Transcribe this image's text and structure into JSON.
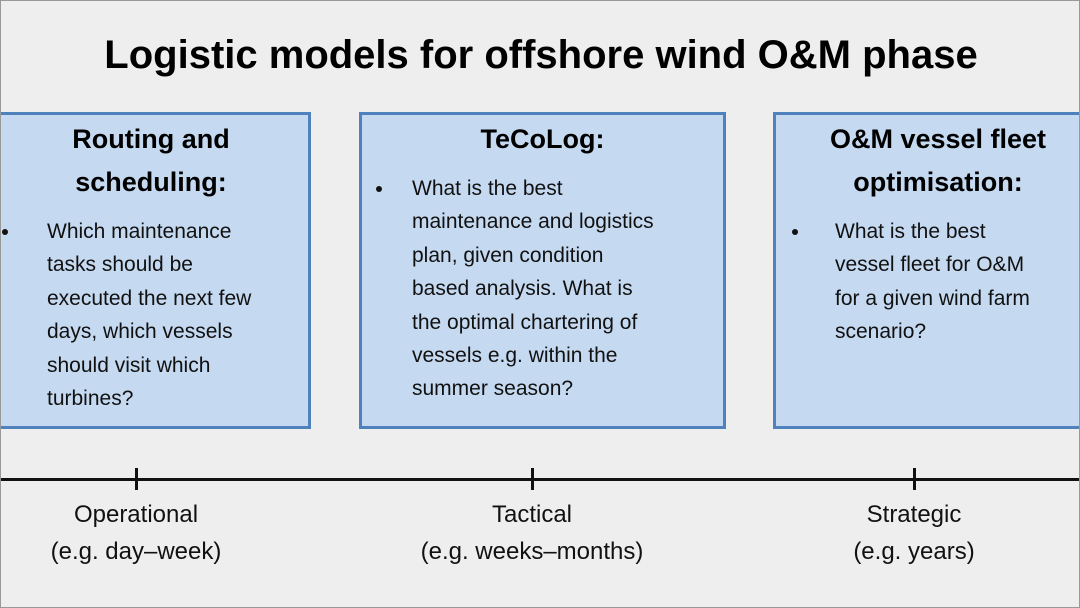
{
  "title": "Logistic models for offshore wind O&M phase",
  "boxes": [
    {
      "title_lines": [
        "Routing and",
        "scheduling:"
      ],
      "bullet_lines": [
        "Which maintenance",
        "tasks should be",
        "executed the next few",
        "days, which vessels",
        "should visit which",
        "turbines?"
      ]
    },
    {
      "title_lines": [
        "TeCoLog:"
      ],
      "bullet_lines": [
        "What is the best",
        "maintenance and logistics",
        "plan, given condition",
        "based analysis. What is",
        "the optimal chartering of",
        "vessels e.g. within the",
        "summer season?"
      ]
    },
    {
      "title_lines": [
        "O&M vessel fleet",
        "optimisation:"
      ],
      "bullet_lines": [
        "What is the best",
        "vessel fleet for O&M",
        "for a given wind farm",
        "scenario?"
      ]
    }
  ],
  "timeline": [
    {
      "label": "Operational",
      "sublabel": "(e.g. day–week)"
    },
    {
      "label": "Tactical",
      "sublabel": "(e.g. weeks–months)"
    },
    {
      "label": "Strategic",
      "sublabel": "(e.g. years)"
    }
  ]
}
